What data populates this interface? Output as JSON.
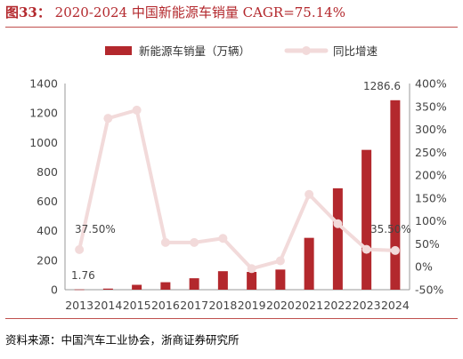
{
  "figure": {
    "label": "图33：",
    "title": "2020-2024 中国新能源车销量 CAGR=75.14%",
    "source": "资料来源：中国汽车工业协会，浙商证券研究所"
  },
  "chart_data": {
    "type": "bar",
    "categories": [
      "2013",
      "2014",
      "2015",
      "2016",
      "2017",
      "2018",
      "2019",
      "2020",
      "2021",
      "2022",
      "2023",
      "2024"
    ],
    "series": [
      {
        "name": "新能源车销量（万辆）",
        "type": "bar",
        "axis": "left",
        "color": "#b3282d",
        "values": [
          1.76,
          7.5,
          33.1,
          50.7,
          77.7,
          125.6,
          120.6,
          136.7,
          352.1,
          688.7,
          949.5,
          1286.6
        ]
      },
      {
        "name": "同比增速",
        "type": "line",
        "axis": "right",
        "color": "#f2dada",
        "values": [
          37.5,
          324,
          342,
          53,
          53,
          62,
          -4,
          13,
          158,
          94,
          38,
          35.5
        ]
      }
    ],
    "y_left": {
      "min": 0,
      "max": 1400,
      "ticks": [
        "0",
        "200",
        "400",
        "600",
        "800",
        "1000",
        "1200",
        "1400"
      ]
    },
    "y_right": {
      "min": -50,
      "max": 400,
      "ticks": [
        "-50%",
        "0%",
        "50%",
        "100%",
        "150%",
        "200%",
        "250%",
        "300%",
        "350%",
        "400%"
      ]
    },
    "annotations": {
      "bar_first": "1.76",
      "bar_last": "1286.6",
      "line_first": "37.50%",
      "line_last": "35.50%"
    },
    "legend_position": "top",
    "grid": false
  }
}
